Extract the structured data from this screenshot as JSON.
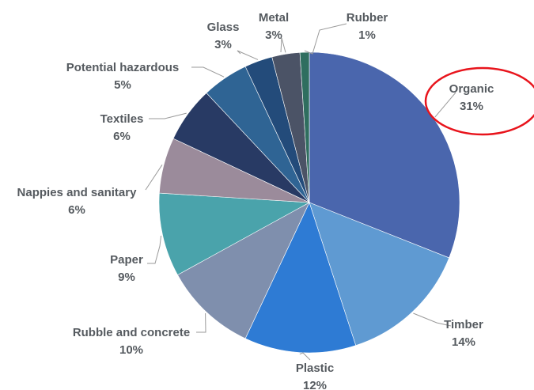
{
  "chart_data": {
    "type": "pie",
    "title": "",
    "slices": [
      {
        "name": "Organic",
        "value": 31,
        "label": "31%",
        "color": "#4a66ad"
      },
      {
        "name": "Timber",
        "value": 14,
        "label": "14%",
        "color": "#5f9ad2"
      },
      {
        "name": "Plastic",
        "value": 12,
        "label": "12%",
        "color": "#2e7bd4"
      },
      {
        "name": "Rubble and concrete",
        "value": 10,
        "label": "10%",
        "color": "#7f8fad"
      },
      {
        "name": "Paper",
        "value": 9,
        "label": "9%",
        "color": "#4aa3ab"
      },
      {
        "name": "Nappies and sanitary",
        "value": 6,
        "label": "6%",
        "color": "#9b8b9b"
      },
      {
        "name": "Textiles",
        "value": 6,
        "label": "6%",
        "color": "#283a64"
      },
      {
        "name": "Potential hazardous",
        "value": 5,
        "label": "5%",
        "color": "#2f6494"
      },
      {
        "name": "Glass",
        "value": 3,
        "label": "3%",
        "color": "#234b7a"
      },
      {
        "name": "Metal",
        "value": 3,
        "label": "3%",
        "color": "#4b5366"
      },
      {
        "name": "Rubber",
        "value": 1,
        "label": "1%",
        "color": "#2f6e5f"
      }
    ],
    "start_angle_deg": 0,
    "direction": "clockwise",
    "highlight": {
      "slice": "Organic",
      "shape": "ellipse",
      "color": "#e8141c"
    }
  }
}
